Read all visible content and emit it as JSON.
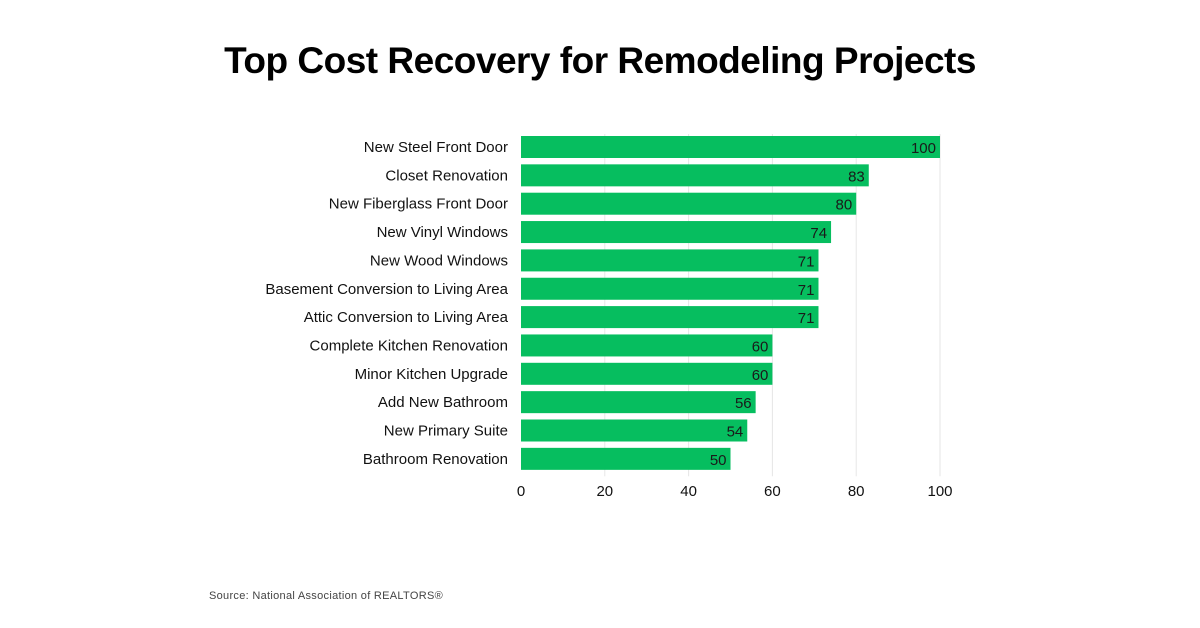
{
  "chart_data": {
    "type": "bar",
    "orientation": "horizontal",
    "title": "Top Cost Recovery for Remodeling Projects",
    "xlabel": "",
    "ylabel": "",
    "xlim": [
      0,
      100
    ],
    "xticks": [
      "0",
      "20",
      "40",
      "60",
      "80",
      "100"
    ],
    "grid": true,
    "categories": [
      "New Steel Front Door",
      "Closet Renovation",
      "New Fiberglass Front Door",
      "New Vinyl Windows",
      "New Wood Windows",
      "Basement Conversion to Living Area",
      "Attic Conversion to Living Area",
      "Complete Kitchen Renovation",
      "Minor Kitchen Upgrade",
      "Add New Bathroom",
      "New Primary Suite",
      "Bathroom Renovation"
    ],
    "values": [
      100,
      83,
      80,
      74,
      71,
      71,
      71,
      60,
      60,
      56,
      54,
      50
    ],
    "bar_color": "#06BE5F",
    "source": "Source: National Association of REALTORS®"
  }
}
